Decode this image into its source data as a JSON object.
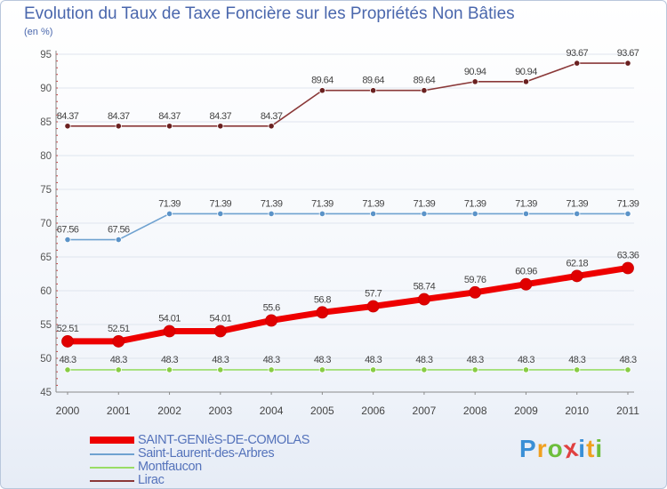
{
  "chart_data": {
    "type": "line",
    "title": "Evolution du Taux de Taxe Foncière sur les Propriétés Non Bâties",
    "ylabel": "(en %)",
    "xlabel": "",
    "ylim": [
      45,
      95
    ],
    "yticks": [
      45,
      50,
      55,
      60,
      65,
      70,
      75,
      80,
      85,
      90,
      95
    ],
    "categories": [
      "2000",
      "2001",
      "2002",
      "2003",
      "2004",
      "2005",
      "2006",
      "2007",
      "2008",
      "2009",
      "2010",
      "2011"
    ],
    "series": [
      {
        "name": "Lirac",
        "color": "#8a3838",
        "marker": "#6a2020",
        "values": [
          84.37,
          84.37,
          84.37,
          84.37,
          84.37,
          89.64,
          89.64,
          89.64,
          90.94,
          90.94,
          93.67,
          93.67
        ],
        "labels": [
          "84.37",
          "84.37",
          "84.37",
          "84.37",
          "84.37",
          "89.64",
          "89.64",
          "89.64",
          "90.94",
          "90.94",
          "93.67",
          "93.67"
        ]
      },
      {
        "name": "Saint-Laurent-des-Arbres",
        "color": "#6fa2d0",
        "marker": "#5b93c8",
        "values": [
          67.56,
          67.56,
          71.39,
          71.39,
          71.39,
          71.39,
          71.39,
          71.39,
          71.39,
          71.39,
          71.39,
          71.39
        ],
        "labels": [
          "67.56",
          "67.56",
          "71.39",
          "71.39",
          "71.39",
          "71.39",
          "71.39",
          "71.39",
          "71.39",
          "71.39",
          "71.39",
          "71.39"
        ]
      },
      {
        "name": "SAINT-GENIèS-DE-COMOLAS",
        "color": "#ee0000",
        "marker": "#e00000",
        "values": [
          52.51,
          52.51,
          54.01,
          54.01,
          55.6,
          56.8,
          57.7,
          58.74,
          59.76,
          60.96,
          62.18,
          63.36
        ],
        "labels": [
          "52.51",
          "52.51",
          "54.01",
          "54.01",
          "55.6",
          "56.8",
          "57.7",
          "58.74",
          "59.76",
          "60.96",
          "62.18",
          "63.36"
        ]
      },
      {
        "name": "Montfaucon",
        "color": "#99dd66",
        "marker": "#88cc44",
        "values": [
          48.3,
          48.3,
          48.3,
          48.3,
          48.3,
          48.3,
          48.3,
          48.3,
          48.3,
          48.3,
          48.3,
          48.3
        ],
        "labels": [
          "48.3",
          "48.3",
          "48.3",
          "48.3",
          "48.3",
          "48.3",
          "48.3",
          "48.3",
          "48.3",
          "48.3",
          "48.3",
          "48.3"
        ]
      }
    ],
    "legend": {
      "placement": "bottom-left",
      "order": [
        "SAINT-GENIèS-DE-COMOLAS",
        "Saint-Laurent-des-Arbres",
        "Montfaucon",
        "Lirac"
      ]
    }
  },
  "brand": {
    "letters": [
      "P",
      "r",
      "o",
      "x",
      "i",
      "t",
      "i"
    ],
    "colors": [
      "#3a8fd6",
      "#f0a020",
      "#6dbe3c",
      "#e04040",
      "#3a8fd6",
      "#f0a020",
      "#6dbe3c"
    ]
  }
}
